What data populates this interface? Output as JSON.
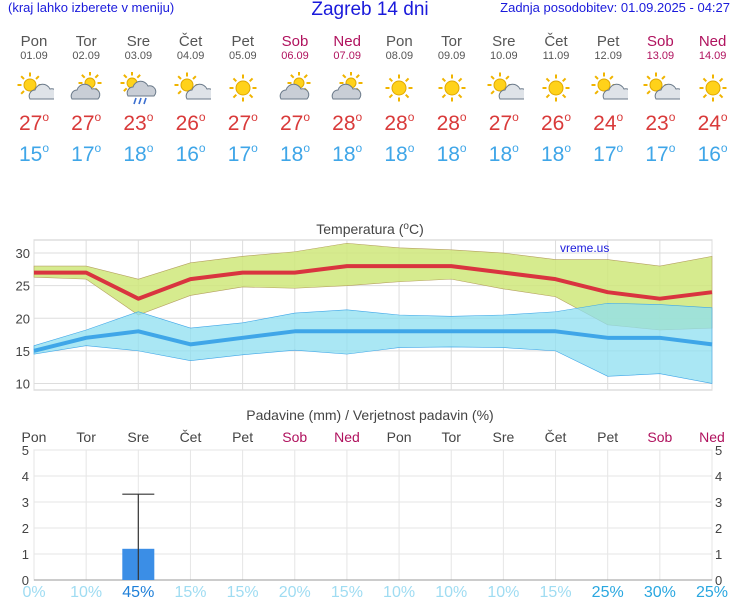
{
  "header": {
    "menu_hint": "(kraj lahko izberete v meniju)",
    "title": "Zagreb 14 dni",
    "updated": "Zadnja posodobitev: 01.09.2025 - 04:27"
  },
  "days": [
    {
      "name": "Pon",
      "date": "01.09",
      "weekend": false,
      "icon": "sun-cloud-icon",
      "max": "27",
      "min": "15"
    },
    {
      "name": "Tor",
      "date": "02.09",
      "weekend": false,
      "icon": "cloud-sun-icon",
      "max": "27",
      "min": "17"
    },
    {
      "name": "Sre",
      "date": "03.09",
      "weekend": false,
      "icon": "sun-cloud-rain-icon",
      "max": "23",
      "min": "18"
    },
    {
      "name": "Čet",
      "date": "04.09",
      "weekend": false,
      "icon": "sun-cloud-icon",
      "max": "26",
      "min": "16"
    },
    {
      "name": "Pet",
      "date": "05.09",
      "weekend": false,
      "icon": "sun-icon",
      "max": "27",
      "min": "17"
    },
    {
      "name": "Sob",
      "date": "06.09",
      "weekend": true,
      "icon": "cloud-sun-icon",
      "max": "27",
      "min": "18"
    },
    {
      "name": "Ned",
      "date": "07.09",
      "weekend": true,
      "icon": "cloud-sun-icon",
      "max": "28",
      "min": "18"
    },
    {
      "name": "Pon",
      "date": "08.09",
      "weekend": false,
      "icon": "sun-icon",
      "max": "28",
      "min": "18"
    },
    {
      "name": "Tor",
      "date": "09.09",
      "weekend": false,
      "icon": "sun-icon",
      "max": "28",
      "min": "18"
    },
    {
      "name": "Sre",
      "date": "10.09",
      "weekend": false,
      "icon": "sun-cloud-icon",
      "max": "27",
      "min": "18"
    },
    {
      "name": "Čet",
      "date": "11.09",
      "weekend": false,
      "icon": "sun-icon",
      "max": "26",
      "min": "18"
    },
    {
      "name": "Pet",
      "date": "12.09",
      "weekend": false,
      "icon": "sun-cloud-icon",
      "max": "24",
      "min": "17"
    },
    {
      "name": "Sob",
      "date": "13.09",
      "weekend": true,
      "icon": "sun-cloud-icon",
      "max": "23",
      "min": "17"
    },
    {
      "name": "Ned",
      "date": "14.09",
      "weekend": true,
      "icon": "sun-icon",
      "max": "24",
      "min": "16"
    }
  ],
  "degree_symbol": "o",
  "colors": {
    "title_blue": "#1a1adb",
    "weekend": "#b0125e",
    "max_line": "#d9343f",
    "min_line": "#3fa6e8",
    "max_band": "#cfe87a",
    "min_band": "#8ddff0",
    "overlap_band": "#7fd17e",
    "precip_bar": "#3b8ee6",
    "prob_text": "#5cc6ee"
  },
  "chart_data": [
    {
      "type": "line",
      "title": "Temperatura (",
      "title_unit_deg": "o",
      "title_unit_end": "C)",
      "watermark": "vreme.us",
      "x": [
        "01.09",
        "02.09",
        "03.09",
        "04.09",
        "05.09",
        "06.09",
        "07.09",
        "08.09",
        "09.09",
        "10.09",
        "11.09",
        "12.09",
        "13.09",
        "14.09"
      ],
      "ylim": [
        9,
        32
      ],
      "yticks": [
        10,
        15,
        20,
        25,
        30
      ],
      "grid": true,
      "series": [
        {
          "role": "max",
          "values": [
            27,
            27,
            23,
            26,
            27,
            27,
            28,
            28,
            28,
            27,
            26,
            24,
            23,
            24
          ],
          "band_upper": [
            28,
            28,
            26,
            28.5,
            29.5,
            30.2,
            31.5,
            30.8,
            30.5,
            30,
            29,
            29,
            28,
            29.5
          ],
          "band_lower": [
            26.3,
            26,
            20.5,
            23.5,
            24.8,
            24.6,
            25,
            25.6,
            26,
            24.5,
            23.3,
            19,
            18.2,
            18.5
          ]
        },
        {
          "role": "min",
          "values": [
            15,
            17,
            18,
            16,
            17,
            18,
            18,
            18,
            18,
            18,
            18,
            17,
            17,
            16
          ],
          "band_upper": [
            15.8,
            18.2,
            21,
            18.5,
            19.3,
            20.8,
            21.3,
            20.5,
            20.3,
            20.5,
            21,
            22.3,
            22.1,
            21.6
          ],
          "band_lower": [
            14.5,
            15.8,
            15,
            13.5,
            14.4,
            15.1,
            14.5,
            15.5,
            15.6,
            15.5,
            15,
            11.1,
            11.5,
            10
          ]
        }
      ]
    },
    {
      "type": "bar",
      "title": "Padavine (mm) / Verjetnost padavin (%)",
      "categories": [
        "Pon",
        "Tor",
        "Sre",
        "Čet",
        "Pet",
        "Sob",
        "Ned",
        "Pon",
        "Tor",
        "Sre",
        "Čet",
        "Pet",
        "Sob",
        "Ned"
      ],
      "weekend": [
        false,
        false,
        false,
        false,
        false,
        true,
        true,
        false,
        false,
        false,
        false,
        false,
        true,
        true
      ],
      "ylim": [
        0,
        5
      ],
      "yticks": [
        0,
        1,
        2,
        3,
        4,
        5
      ],
      "values": [
        0,
        0,
        1.2,
        0,
        0,
        0,
        0,
        0,
        0,
        0,
        0,
        0,
        0,
        0
      ],
      "error_upper": [
        null,
        null,
        3.3,
        null,
        null,
        null,
        null,
        null,
        null,
        null,
        null,
        null,
        null,
        null
      ],
      "probability": [
        "0%",
        "10%",
        "45%",
        "15%",
        "15%",
        "20%",
        "15%",
        "10%",
        "10%",
        "10%",
        "15%",
        "25%",
        "30%",
        "25%"
      ]
    }
  ]
}
